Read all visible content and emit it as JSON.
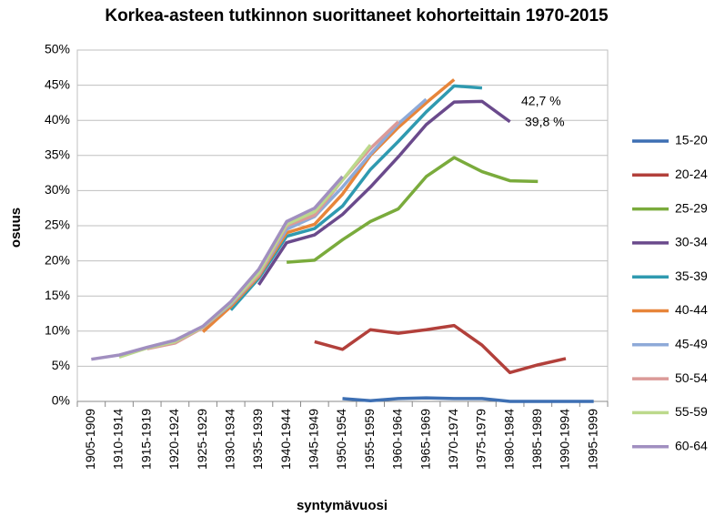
{
  "chart_data": {
    "type": "line",
    "title": "Korkea-asteen tutkinnon suorittaneet kohorteittain 1970-2015",
    "x_label": "syntymävuosi",
    "y_label": "osuus",
    "categories": [
      "1905-1909",
      "1910-1914",
      "1915-1919",
      "1920-1924",
      "1925-1929",
      "1930-1934",
      "1935-1939",
      "1940-1944",
      "1945-1949",
      "1950-1954",
      "1955-1959",
      "1960-1964",
      "1965-1969",
      "1970-1974",
      "1975-1979",
      "1980-1984",
      "1985-1989",
      "1990-1994",
      "1995-1999"
    ],
    "ylim": [
      0,
      50
    ],
    "yticks": [
      {
        "value": 0,
        "label": "0%"
      },
      {
        "value": 5,
        "label": "5%"
      },
      {
        "value": 10,
        "label": "10%"
      },
      {
        "value": 15,
        "label": "15%"
      },
      {
        "value": 20,
        "label": "20%"
      },
      {
        "value": 25,
        "label": "25%"
      },
      {
        "value": 30,
        "label": "30%"
      },
      {
        "value": 35,
        "label": "35%"
      },
      {
        "value": 40,
        "label": "40%"
      },
      {
        "value": 45,
        "label": "45%"
      },
      {
        "value": 50,
        "label": "50%"
      }
    ],
    "grid": true,
    "legend": "right",
    "annotations": [
      "42,7 %",
      "39,8 %"
    ],
    "series": [
      {
        "name": "15-20",
        "color": "#3d6fb3",
        "values": [
          null,
          null,
          null,
          null,
          null,
          null,
          null,
          null,
          null,
          0.4,
          0.1,
          0.4,
          0.5,
          0.4,
          0.4,
          0.0,
          0.0,
          0.0,
          0.0
        ]
      },
      {
        "name": "20-24",
        "color": "#b2403b",
        "values": [
          null,
          null,
          null,
          null,
          null,
          null,
          null,
          null,
          8.5,
          7.4,
          10.2,
          9.7,
          10.2,
          10.8,
          8.0,
          4.1,
          5.2,
          6.1,
          null
        ]
      },
      {
        "name": "25-29",
        "color": "#7aab3c",
        "values": [
          null,
          null,
          null,
          null,
          null,
          null,
          null,
          19.8,
          20.1,
          23.0,
          25.6,
          27.4,
          32.0,
          34.7,
          32.7,
          31.4,
          31.3,
          null,
          null
        ]
      },
      {
        "name": "30-34",
        "color": "#6a4a8c",
        "values": [
          null,
          null,
          null,
          null,
          null,
          null,
          16.6,
          22.6,
          23.7,
          26.6,
          30.5,
          34.8,
          39.4,
          42.6,
          42.7,
          39.8,
          null,
          null,
          null
        ]
      },
      {
        "name": "35-39",
        "color": "#2f9ab0",
        "values": [
          null,
          null,
          null,
          null,
          null,
          13.0,
          17.5,
          23.5,
          24.6,
          27.8,
          33.0,
          37.0,
          41.2,
          44.9,
          44.6,
          null,
          null,
          null,
          null
        ]
      },
      {
        "name": "40-44",
        "color": "#e7853a",
        "values": [
          null,
          null,
          null,
          null,
          9.9,
          13.5,
          17.8,
          24.0,
          25.2,
          29.5,
          35.0,
          39.0,
          42.5,
          45.8,
          null,
          null,
          null,
          null,
          null
        ]
      },
      {
        "name": "45-49",
        "color": "#8eaad8",
        "values": [
          null,
          null,
          null,
          8.5,
          10.5,
          13.8,
          18.0,
          24.5,
          26.3,
          30.5,
          35.2,
          39.5,
          43.0,
          null,
          null,
          null,
          null,
          null,
          null
        ]
      },
      {
        "name": "50-54",
        "color": "#db9a98",
        "values": [
          null,
          null,
          7.5,
          8.3,
          10.5,
          14.0,
          18.0,
          25.0,
          26.5,
          31.5,
          36.0,
          39.8,
          null,
          null,
          null,
          null,
          null,
          null,
          null
        ]
      },
      {
        "name": "55-59",
        "color": "#bcd98c",
        "values": [
          null,
          6.3,
          7.6,
          8.5,
          10.6,
          14.0,
          18.3,
          25.2,
          27.0,
          31.5,
          36.5,
          null,
          null,
          null,
          null,
          null,
          null,
          null,
          null
        ]
      },
      {
        "name": "60-64",
        "color": "#a18fc0",
        "values": [
          6.0,
          6.6,
          7.7,
          8.7,
          10.7,
          14.2,
          18.8,
          25.6,
          27.5,
          32.0,
          null,
          null,
          null,
          null,
          null,
          null,
          null,
          null,
          null
        ]
      }
    ]
  }
}
